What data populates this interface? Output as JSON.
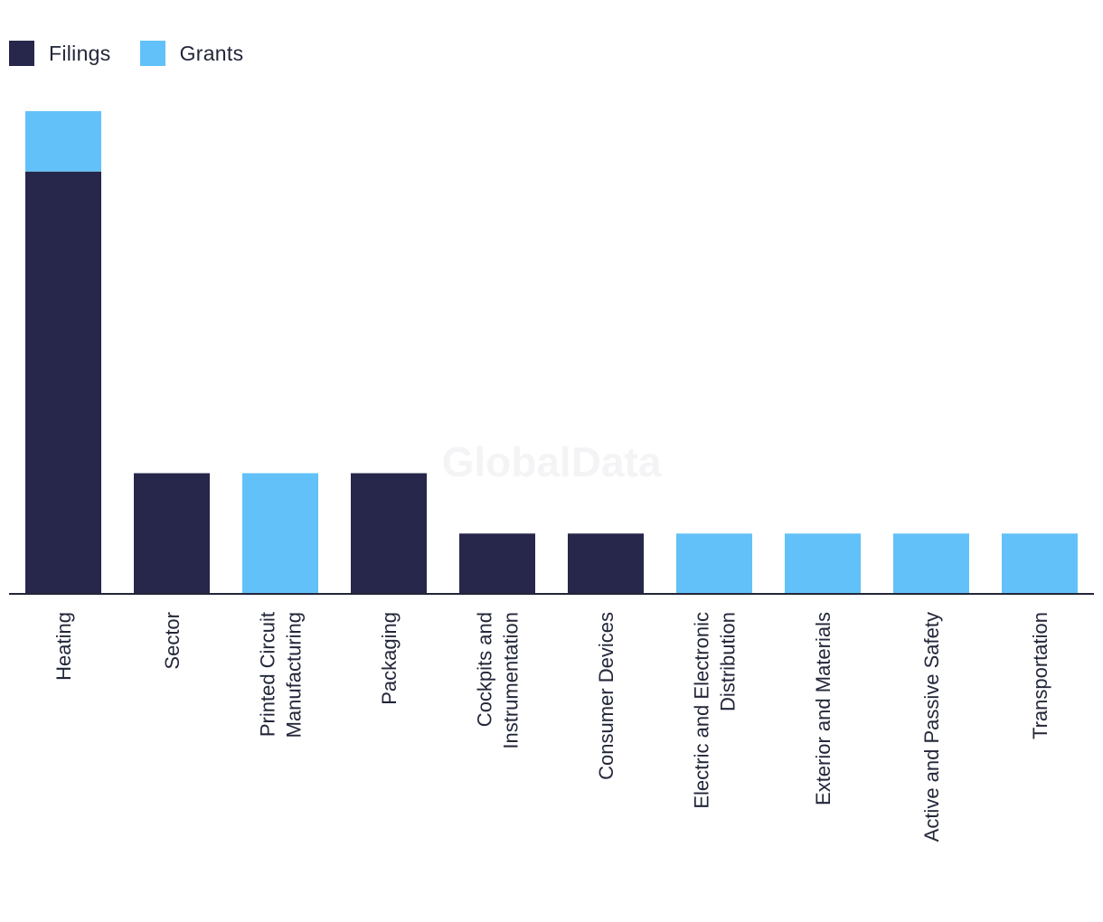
{
  "legend": {
    "items": [
      {
        "label": "Filings",
        "color": "#26274a"
      },
      {
        "label": "Grants",
        "color": "#62c1f8"
      }
    ]
  },
  "watermark": "GlobalData",
  "chart_data": {
    "type": "bar",
    "stacked": true,
    "categories": [
      [
        "Heating"
      ],
      [
        "Sector"
      ],
      [
        "Printed Circuit",
        "Manufacturing"
      ],
      [
        "Packaging"
      ],
      [
        "Cockpits and",
        "Instrumentation"
      ],
      [
        "Consumer Devices"
      ],
      [
        "Electric and Electronic",
        "Distribution"
      ],
      [
        "Exterior and Materials"
      ],
      [
        "Active and Passive Safety"
      ],
      [
        "Transportation"
      ]
    ],
    "series": [
      {
        "name": "Filings",
        "color": "#26274a",
        "values": [
          7,
          2,
          0,
          2,
          1,
          1,
          0,
          0,
          0,
          0
        ]
      },
      {
        "name": "Grants",
        "color": "#62c1f8",
        "values": [
          1,
          0,
          2,
          0,
          0,
          0,
          1,
          1,
          1,
          1
        ]
      }
    ],
    "ylim": [
      0,
      8
    ],
    "grid": false,
    "legend_position": "top-left"
  }
}
